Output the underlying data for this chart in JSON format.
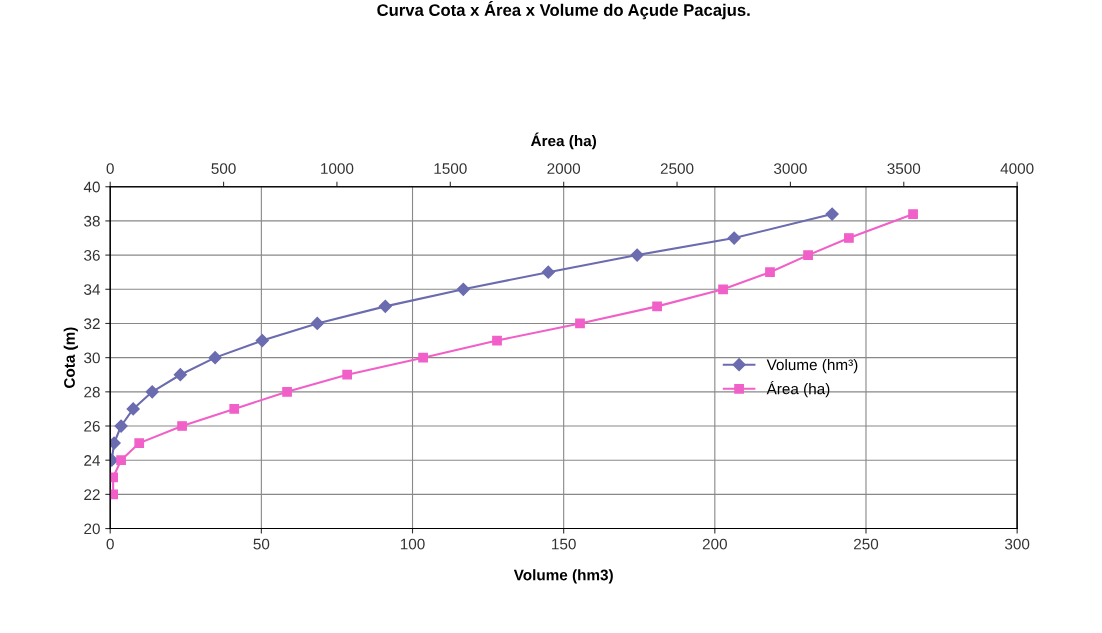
{
  "chart_data": {
    "type": "line",
    "title": "Curva Cota x Área x Volume do Açude Pacajus.",
    "xlabel": "Volume (hm3)",
    "x2label": "Área (ha)",
    "ylabel": "Cota (m)",
    "xlim": [
      0,
      300
    ],
    "xticks": [
      0,
      50,
      100,
      150,
      200,
      250,
      300
    ],
    "x2lim": [
      0,
      4000
    ],
    "x2ticks": [
      0,
      500,
      1000,
      1500,
      2000,
      2500,
      3000,
      3500,
      4000
    ],
    "ylim": [
      20,
      40
    ],
    "yticks": [
      20,
      22,
      24,
      26,
      28,
      30,
      32,
      34,
      36,
      38,
      40
    ],
    "grid": true,
    "legend": "right",
    "series": [
      {
        "name": "Volume (hm³)",
        "color": "#6b6bb0",
        "marker": "diamond",
        "x": [
          0.5,
          1.3,
          3.6,
          7.6,
          13.9,
          23.2,
          34.7,
          50.3,
          68.5,
          91,
          116.8,
          144.9,
          174.3,
          206.4,
          238.8
        ],
        "values": [
          24,
          25,
          26,
          27,
          28,
          29,
          30,
          31,
          32,
          33,
          34,
          35,
          36,
          37,
          38.4
        ]
      },
      {
        "name": "Área (ha)",
        "color": "#f060c8",
        "marker": "square",
        "axis": "x2",
        "x": [
          13,
          13,
          48,
          128,
          317,
          547,
          780,
          1045,
          1380,
          1706,
          2072,
          2412,
          2703,
          2910,
          3078,
          3258,
          3541
        ],
        "values": [
          22,
          23,
          24,
          25,
          26,
          27,
          28,
          29,
          30,
          31,
          32,
          33,
          34,
          35,
          36,
          37,
          38.4
        ]
      }
    ]
  }
}
